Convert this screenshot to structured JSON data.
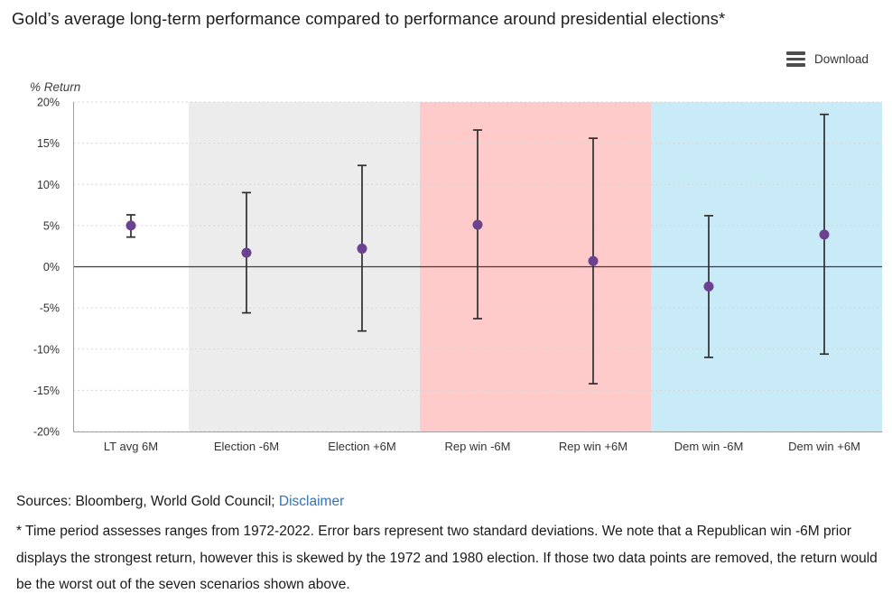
{
  "toolbar": {
    "download_label": "Download"
  },
  "chart_data": {
    "type": "scatter",
    "title": "Gold’s average long-term performance compared to performance around presidential elections*",
    "ylabel": "% Return",
    "xlabel": "",
    "ylim": [
      -20,
      20
    ],
    "ytick_step": 5,
    "ytick_suffix": "%",
    "grid": true,
    "zero_line": true,
    "legend": "none",
    "categories": [
      "LT avg 6M",
      "Election -6M",
      "Election +6M",
      "Rep win -6M",
      "Rep win +6M",
      "Dem win -6M",
      "Dem win +6M"
    ],
    "series": [
      {
        "values": [
          5.0,
          1.7,
          2.2,
          5.1,
          0.7,
          -2.4,
          3.9
        ],
        "error_high": [
          6.3,
          9.0,
          12.3,
          16.6,
          15.6,
          6.2,
          18.5
        ],
        "error_low": [
          3.6,
          -5.6,
          -7.8,
          -6.3,
          -14.2,
          -11.0,
          -10.6
        ]
      }
    ],
    "band_colors": [
      "#ffffff",
      "#ececec",
      "#ececec",
      "#ffcbca",
      "#ffcbca",
      "#c9ebf7",
      "#c9ebf7"
    ],
    "point_color": "#6b4190",
    "error_bar_color": "#2e2e2e",
    "gridline_color": "#d6d6d6",
    "axis_color": "#a0a0a0",
    "tick_label_color": "#333333"
  },
  "footer": {
    "sources": "Sources: Bloomberg, World Gold Council;",
    "disclaimer": "Disclaimer",
    "footnote": "* Time period assesses ranges from 1972-2022. Error bars represent two standard deviations. We note that a Republican win -6M prior displays the strongest return, however this is skewed by the 1972 and 1980 election. If those two data points are removed, the return would be the worst out of the seven scenarios shown above."
  }
}
